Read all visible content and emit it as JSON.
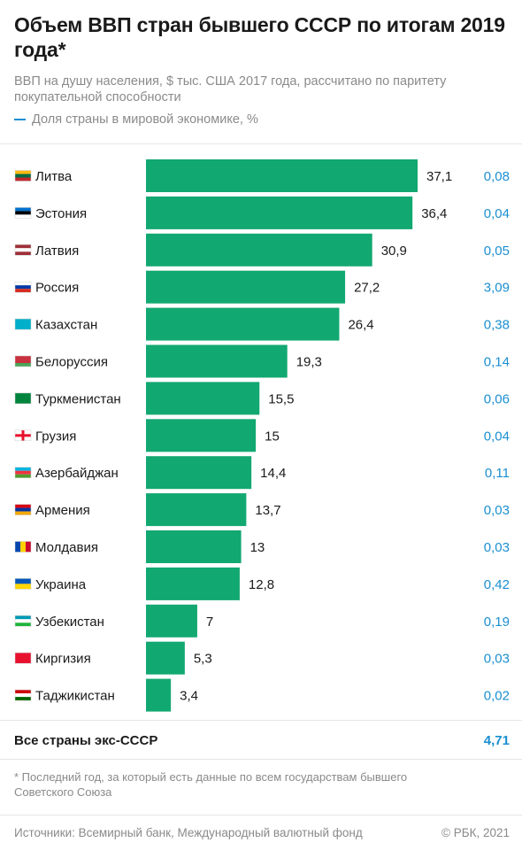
{
  "title": "Объем ВВП стран бывшего СССР по итогам 2019 года*",
  "subtitle": "ВВП на душу населения, $ тыс. США 2017 года, рассчитано по паритету покупательной способности",
  "legend_label": "Доля страны в мировой экономике, %",
  "colors": {
    "bar": "#12a871",
    "share": "#1a8fd0",
    "text": "#1a1a1a",
    "muted": "#8a8a8a"
  },
  "chart_data": {
    "type": "bar",
    "orientation": "horizontal",
    "categories": [
      "Литва",
      "Эстония",
      "Латвия",
      "Россия",
      "Казахстан",
      "Белоруссия",
      "Туркменистан",
      "Грузия",
      "Азербайджан",
      "Армения",
      "Молдавия",
      "Украина",
      "Узбекистан",
      "Киргизия",
      "Таджикистан"
    ],
    "series": [
      {
        "values": [
          37.1,
          36.4,
          30.9,
          27.2,
          26.4,
          19.3,
          15.5,
          15,
          14.4,
          13.7,
          13,
          12.8,
          7,
          5.3,
          3.4
        ]
      },
      {
        "values": [
          0.08,
          0.04,
          0.05,
          3.09,
          0.38,
          0.14,
          0.06,
          0.04,
          0.11,
          0.03,
          0.03,
          0.42,
          0.19,
          0.03,
          0.02
        ]
      }
    ],
    "value_labels": [
      "37,1",
      "36,4",
      "30,9",
      "27,2",
      "26,4",
      "19,3",
      "15,5",
      "15",
      "14,4",
      "13,7",
      "13",
      "12,8",
      "7",
      "5,3",
      "3,4"
    ],
    "share_labels": [
      "0,08",
      "0,04",
      "0,05",
      "3,09",
      "0,38",
      "0,14",
      "0,06",
      "0,04",
      "0,11",
      "0,03",
      "0,03",
      "0,42",
      "0,19",
      "0,03",
      "0,02"
    ],
    "flags": [
      {
        "stripes": [
          "#fdb913",
          "#006a44",
          "#c1272d"
        ],
        "dir": "h"
      },
      {
        "stripes": [
          "#0072ce",
          "#000000",
          "#ffffff"
        ],
        "dir": "h"
      },
      {
        "stripes": [
          "#9e3039",
          "#ffffff",
          "#9e3039"
        ],
        "dir": "h"
      },
      {
        "stripes": [
          "#ffffff",
          "#0039a6",
          "#d52b1e"
        ],
        "dir": "h"
      },
      {
        "stripes": [
          "#00afca"
        ],
        "dir": "h"
      },
      {
        "stripes": [
          "#c8313e",
          "#c8313e",
          "#4aa657"
        ],
        "dir": "h"
      },
      {
        "stripes": [
          "#00843d"
        ],
        "dir": "h"
      },
      {
        "stripes": [
          "#ffffff"
        ],
        "dir": "cross",
        "cross": "#e8112d"
      },
      {
        "stripes": [
          "#00b5e2",
          "#ef3340",
          "#509e2f"
        ],
        "dir": "h"
      },
      {
        "stripes": [
          "#d90012",
          "#0033a0",
          "#f2a800"
        ],
        "dir": "h"
      },
      {
        "stripes": [
          "#0046ae",
          "#ffd200",
          "#cc092f"
        ],
        "dir": "v"
      },
      {
        "stripes": [
          "#0057b7",
          "#ffd700"
        ],
        "dir": "h"
      },
      {
        "stripes": [
          "#0099b5",
          "#ffffff",
          "#1eb53a"
        ],
        "dir": "h"
      },
      {
        "stripes": [
          "#e8112d"
        ],
        "dir": "h"
      },
      {
        "stripes": [
          "#cc0000",
          "#ffffff",
          "#006600"
        ],
        "dir": "h"
      }
    ],
    "xlim": [
      0,
      37.1
    ]
  },
  "total_label": "Все страны экс-СССР",
  "total_value": "4,71",
  "footnote": "* Последний год, за который есть данные по всем государствам бывшего Советского Союза",
  "source": "Источники:  Всемирный банк, Международный валютный фонд",
  "copyright": "©  РБК, 2021"
}
